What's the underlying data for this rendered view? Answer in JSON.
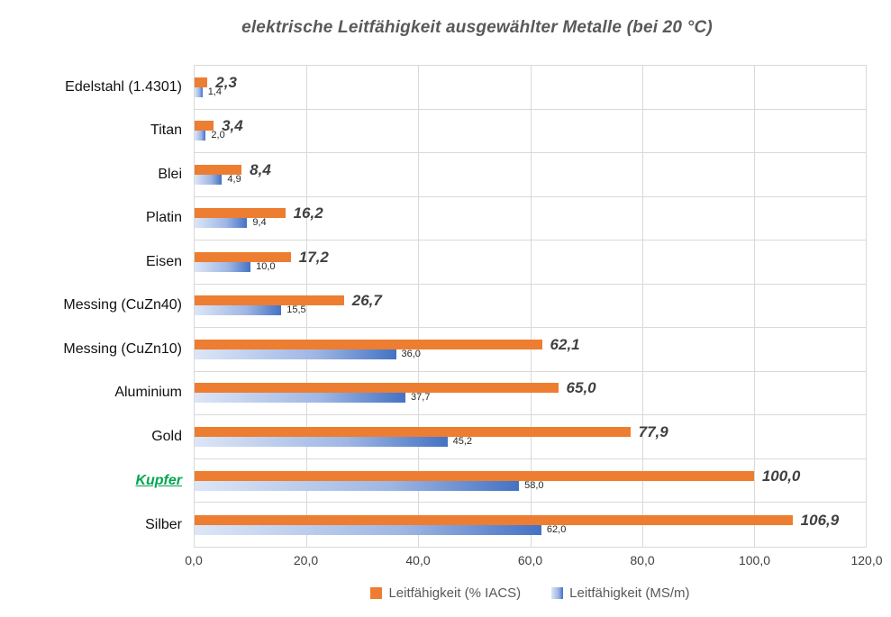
{
  "title": "elektrische Leitfähigkeit ausgewählter Metalle (bei 20 °C)",
  "chart_data": {
    "type": "bar",
    "orientation": "horizontal",
    "title": "elektrische Leitfähigkeit ausgewählter Metalle (bei 20 °C)",
    "categories": [
      "Edelstahl (1.4301)",
      "Titan",
      "Blei",
      "Platin",
      "Eisen",
      "Messing (CuZn40)",
      "Messing (CuZn10)",
      "Aluminium",
      "Gold",
      "Kupfer",
      "Silber"
    ],
    "highlighted_category": "Kupfer",
    "series": [
      {
        "name": "Leitfähigkeit (% IACS)",
        "values": [
          2.3,
          3.4,
          8.4,
          16.2,
          17.2,
          26.7,
          62.1,
          65.0,
          77.9,
          100.0,
          106.9
        ],
        "labels": [
          "2,3",
          "3,4",
          "8,4",
          "16,2",
          "17,2",
          "26,7",
          "62,1",
          "65,0",
          "77,9",
          "100,0",
          "106,9"
        ]
      },
      {
        "name": "Leitfähigkeit (MS/m)",
        "values": [
          1.4,
          2.0,
          4.9,
          9.4,
          10.0,
          15.5,
          36.0,
          37.7,
          45.2,
          58.0,
          62.0
        ],
        "labels": [
          "1,4",
          "2,0",
          "4,9",
          "9,4",
          "10,0",
          "15,5",
          "36,0",
          "37,7",
          "45,2",
          "58,0",
          "62,0"
        ]
      }
    ],
    "xlim": [
      0,
      120
    ],
    "x_ticks": [
      {
        "value": 0,
        "label": "0,0"
      },
      {
        "value": 20,
        "label": "20,0"
      },
      {
        "value": 40,
        "label": "40,0"
      },
      {
        "value": 60,
        "label": "60,0"
      },
      {
        "value": 80,
        "label": "80,0"
      },
      {
        "value": 100,
        "label": "100,0"
      },
      {
        "value": 120,
        "label": "120,0"
      }
    ],
    "grid": true,
    "legend_position": "bottom"
  },
  "colors": {
    "iacs_bar": "#ED7D31",
    "msm_gradient_start": "#DCE6F6",
    "msm_gradient_mid": "#9FB6E4",
    "msm_gradient_end": "#4472C4",
    "highlight_green": "#00A650",
    "gridline": "#D9D9D9",
    "title_text": "#595959",
    "value_label_iacs": "#404040"
  }
}
